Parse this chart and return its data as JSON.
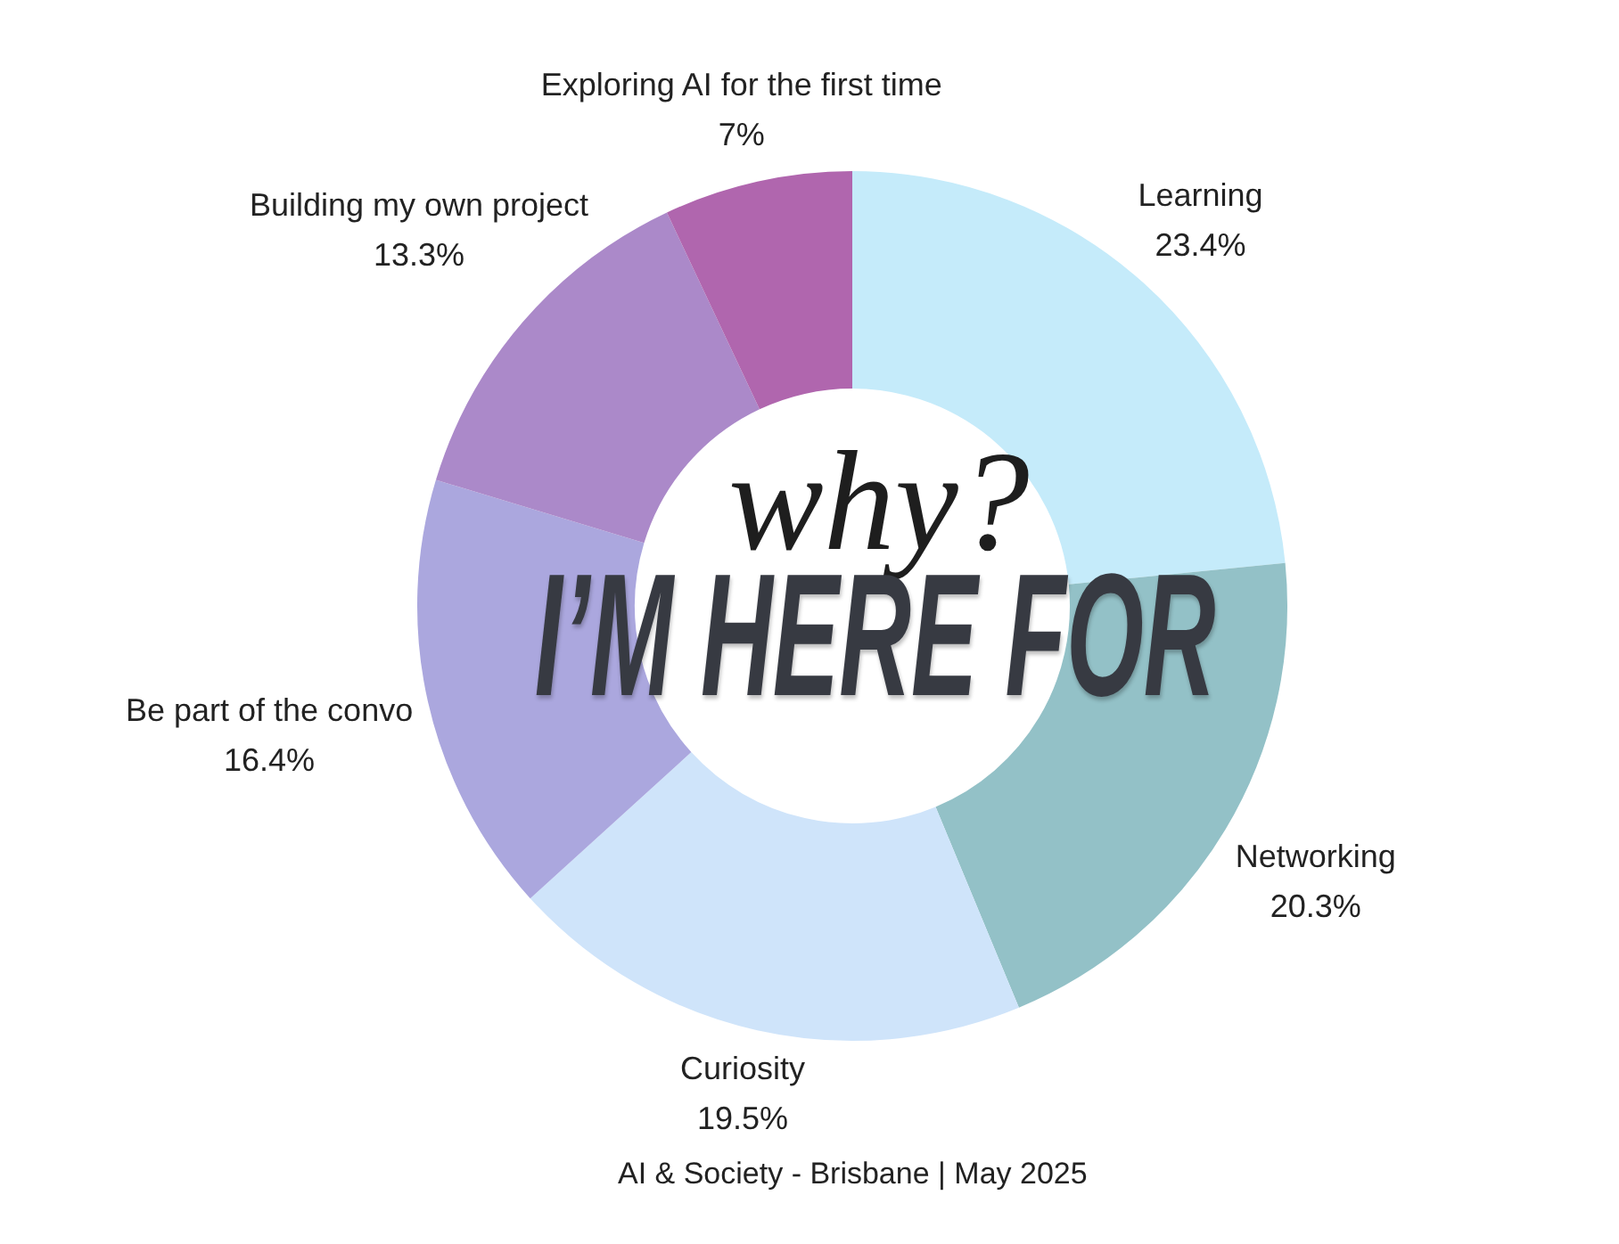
{
  "chart_data": {
    "type": "donut",
    "title": "why?",
    "subtitle": "I’M HERE FOR",
    "annotations": [
      "AI & Society - Brisbane | May 2025"
    ],
    "categories": [
      "Learning",
      "Networking",
      "Curiosity",
      "Be part of the convo",
      "Building my own project",
      "Exploring AI for the first time"
    ],
    "values": [
      23.4,
      20.3,
      19.5,
      16.4,
      13.3,
      7
    ],
    "value_labels": [
      "23.4%",
      "20.3%",
      "19.5%",
      "16.4%",
      "13.3%",
      "7%"
    ],
    "colors": [
      "#c5ebfa",
      "#93c1c7",
      "#cfe4fa",
      "#aba7de",
      "#ab89c9",
      "#b066ae"
    ]
  }
}
